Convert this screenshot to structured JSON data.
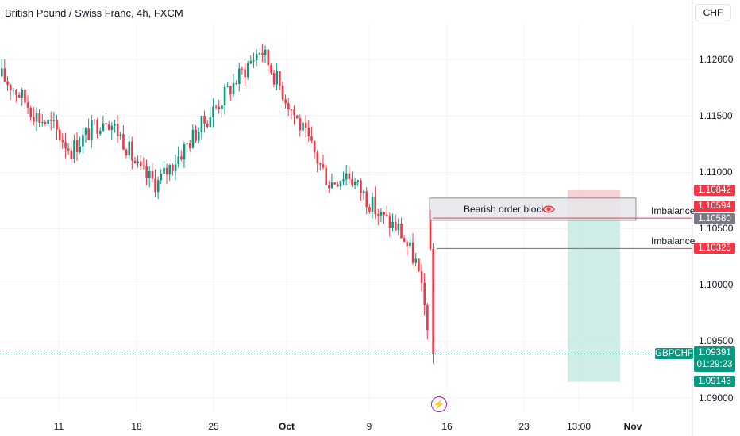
{
  "header": {
    "title": "British Pound / Swiss Franc, 4h, FXCM",
    "currency": "CHF"
  },
  "colors": {
    "bullish": "#089981",
    "bearish": "#f23645",
    "order_block_fill": "#e6e7ea",
    "order_block_border": "#787b86",
    "stop_zone": "#f7c9cb",
    "target_zone": "#c9ebe4",
    "grid": "#f0f3fa"
  },
  "chart_data": {
    "type": "candlestick",
    "symbol": "GBPCHF",
    "y_axis": {
      "ticks": [
        "1.12000",
        "1.11500",
        "1.11000",
        "1.10500",
        "1.10000",
        "1.09500",
        "1.09000"
      ],
      "range": [
        1.0888,
        1.1227
      ]
    },
    "x_axis": {
      "ticks": [
        "11",
        "18",
        "25",
        "Oct",
        "9",
        "16",
        "23",
        "13:00",
        "Nov"
      ]
    },
    "candles_approx_closes": [
      1.1185,
      1.117,
      1.115,
      1.114,
      1.112,
      1.1135,
      1.115,
      1.113,
      1.11,
      1.109,
      1.111,
      1.113,
      1.115,
      1.117,
      1.119,
      1.121,
      1.118,
      1.115,
      1.112,
      1.109,
      1.11,
      1.108,
      1.106,
      1.105,
      1.102,
      1.094
    ],
    "price_labels": [
      {
        "value": "1.10842",
        "color": "#f23645"
      },
      {
        "value": "1.10594",
        "color": "#f23645"
      },
      {
        "value": "1.10580",
        "color": "#787b86"
      },
      {
        "value": "1.10325",
        "color": "#f23645"
      },
      {
        "value": "1.09143",
        "color": "#089981"
      }
    ],
    "current": {
      "symbol": "GBPCHF",
      "price": "1.09391",
      "countdown": "01:29:23"
    },
    "annotations": {
      "order_block": "Bearish order block",
      "imbalance_1": "Imbalance",
      "imbalance_2": "Imbalance"
    }
  }
}
